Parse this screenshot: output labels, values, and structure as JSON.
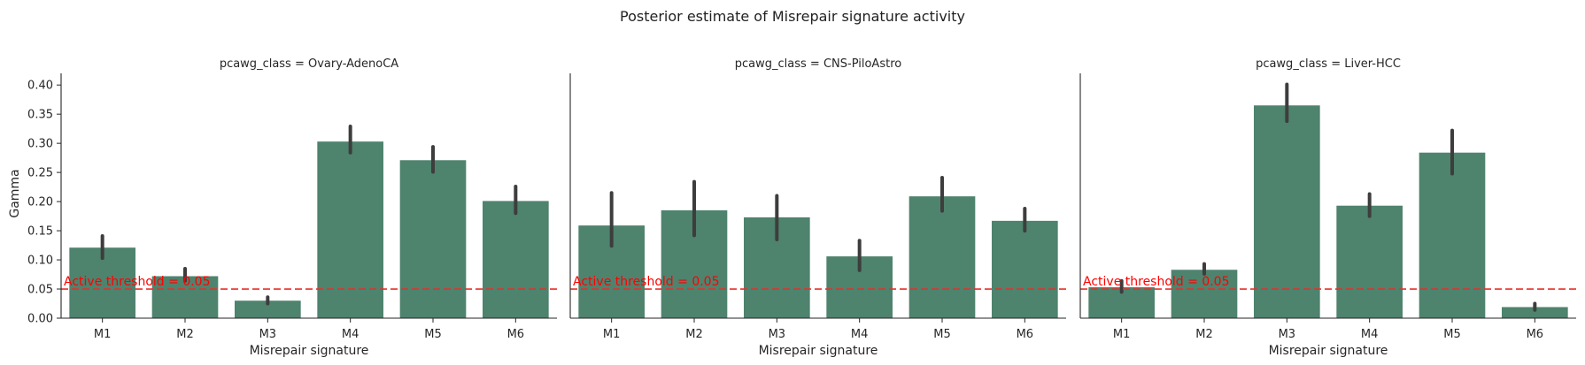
{
  "figure": {
    "title": "Posterior estimate of Misrepair signature activity",
    "ylabel": "Gamma",
    "xlabel": "Misrepair signature"
  },
  "colors": {
    "bar": "#4e836e",
    "error_bar": "#3d3d3d",
    "threshold": "#e8302a",
    "threshold_text": "#ff0000"
  },
  "chart_data": {
    "type": "bar",
    "title": "Posterior estimate of Misrepair signature activity",
    "ylabel": "Gamma",
    "xlabel": "Misrepair signature",
    "ylim": [
      0,
      0.42
    ],
    "yticks": [
      "0.00",
      "0.05",
      "0.10",
      "0.15",
      "0.20",
      "0.25",
      "0.30",
      "0.35",
      "0.40"
    ],
    "ytick_values": [
      0,
      0.05,
      0.1,
      0.15,
      0.2,
      0.25,
      0.3,
      0.35,
      0.4
    ],
    "categories": [
      "M1",
      "M2",
      "M3",
      "M4",
      "M5",
      "M6"
    ],
    "grid": false,
    "threshold": {
      "value": 0.05,
      "label": "Active threshold = 0.05",
      "style": "dashed"
    },
    "panels": [
      {
        "title": "pcawg_class = Ovary-AdenoCA",
        "values": [
          0.121,
          0.072,
          0.03,
          0.303,
          0.271,
          0.201
        ],
        "err_low": [
          0.103,
          0.064,
          0.025,
          0.284,
          0.251,
          0.18
        ],
        "err_high": [
          0.141,
          0.085,
          0.036,
          0.329,
          0.294,
          0.226
        ]
      },
      {
        "title": "pcawg_class = CNS-PiloAstro",
        "values": [
          0.159,
          0.185,
          0.173,
          0.106,
          0.209,
          0.167
        ],
        "err_low": [
          0.124,
          0.142,
          0.135,
          0.082,
          0.184,
          0.15
        ],
        "err_high": [
          0.215,
          0.234,
          0.21,
          0.133,
          0.241,
          0.188
        ]
      },
      {
        "title": "pcawg_class = Liver-HCC",
        "values": [
          0.053,
          0.083,
          0.365,
          0.193,
          0.284,
          0.019
        ],
        "err_low": [
          0.045,
          0.076,
          0.338,
          0.175,
          0.248,
          0.014
        ],
        "err_high": [
          0.064,
          0.093,
          0.401,
          0.213,
          0.322,
          0.025
        ]
      }
    ]
  }
}
